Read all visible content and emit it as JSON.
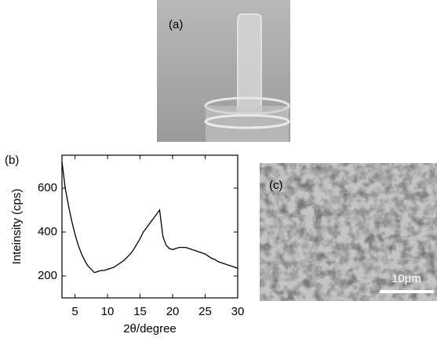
{
  "panel_labels": [
    "(a)",
    "(c)"
  ],
  "scale_bar": "10μm",
  "chart_data": {
    "type": "line",
    "panel_label": "(b)",
    "xlabel": "2θ/degree",
    "ylabel": "Inteinsity (cps)",
    "x": [
      3,
      3.5,
      4,
      4.5,
      5,
      5.5,
      6,
      6.5,
      7,
      7.5,
      8,
      8.5,
      9,
      9.5,
      10,
      10.5,
      11,
      11.5,
      12,
      12.5,
      13,
      13.5,
      14,
      14.5,
      15,
      15.5,
      16,
      16.5,
      17,
      17.5,
      18,
      18.5,
      19,
      19.5,
      20,
      20.5,
      21,
      21.5,
      22,
      22.5,
      23,
      23.5,
      24,
      24.5,
      25,
      25.5,
      26,
      26.5,
      27,
      27.5,
      28,
      28.5,
      29,
      29.5,
      30
    ],
    "values": [
      720,
      600,
      520,
      450,
      390,
      340,
      300,
      270,
      245,
      230,
      215,
      220,
      225,
      225,
      230,
      235,
      240,
      250,
      260,
      270,
      285,
      300,
      320,
      345,
      370,
      400,
      420,
      440,
      460,
      480,
      500,
      380,
      340,
      325,
      320,
      325,
      330,
      330,
      330,
      325,
      320,
      315,
      310,
      305,
      300,
      290,
      280,
      275,
      265,
      260,
      255,
      250,
      245,
      240,
      235
    ],
    "color": "#000000",
    "xlim": [
      3,
      30
    ],
    "ylim": [
      100,
      750
    ],
    "xticks": [
      5,
      10,
      15,
      20,
      25,
      30
    ],
    "yticks": [
      200,
      400,
      600
    ]
  }
}
